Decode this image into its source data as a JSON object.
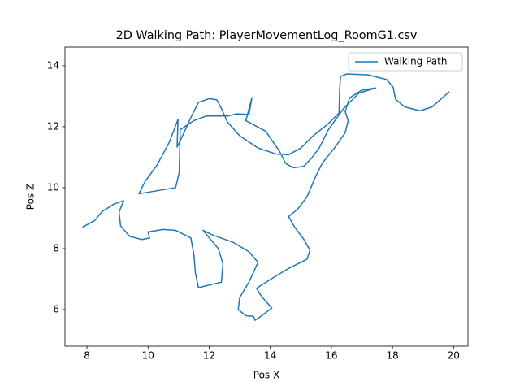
{
  "chart_data": {
    "type": "line",
    "title": "2D Walking Path: PlayerMovementLog_RoomG1.csv",
    "x_label": "Pos X",
    "y_label": "Pos Z",
    "xlim": [
      7.28,
      20.47
    ],
    "ylim": [
      4.8,
      14.61
    ],
    "xticks": [
      8,
      10,
      12,
      14,
      16,
      18,
      20
    ],
    "yticks": [
      6,
      8,
      10,
      12,
      14
    ],
    "legend": "upper right",
    "grid": false,
    "x": [
      7.85,
      8.25,
      8.5,
      8.9,
      9.2,
      9.05,
      9.1,
      9.4,
      9.8,
      10.05,
      10.0,
      10.5,
      10.9,
      11.2,
      11.4,
      11.5,
      11.55,
      11.65,
      12.4,
      12.45,
      12.3,
      11.8,
      12.1,
      12.3,
      12.8,
      13.3,
      13.6,
      13.3,
      13.0,
      12.95,
      13.2,
      13.45,
      13.5,
      13.65,
      14.05,
      13.7,
      13.55,
      14.1,
      14.6,
      15.2,
      15.3,
      15.1,
      14.8,
      14.6,
      14.9,
      15.2,
      15.5,
      15.7,
      16.1,
      16.45,
      16.55,
      16.45,
      16.6,
      17.0,
      17.45,
      16.9,
      16.4,
      15.9,
      15.6,
      15.35,
      15.1,
      14.75,
      14.5,
      14.3,
      13.85,
      13.2,
      13.4,
      13.3,
      12.9,
      12.6,
      11.9,
      11.5,
      11.05,
      11.02,
      10.9,
      10.3,
      9.7,
      9.9,
      10.3,
      10.7,
      10.98,
      10.95,
      11.15,
      11.4,
      11.65,
      12.0,
      12.25,
      12.4,
      12.6,
      13.0,
      13.6,
      14.2,
      14.6,
      15.0,
      15.4,
      15.9,
      16.25,
      16.27,
      16.3,
      16.5,
      17.2,
      17.8,
      18.02,
      18.1,
      18.4,
      18.9,
      19.3,
      19.86
    ],
    "series": [
      {
        "name": "Walking Path",
        "color": "#1f77b4",
        "values": [
          8.7,
          8.92,
          9.22,
          9.47,
          9.57,
          9.2,
          8.75,
          8.4,
          8.3,
          8.35,
          8.55,
          8.63,
          8.6,
          8.45,
          8.35,
          7.8,
          7.2,
          6.72,
          6.9,
          7.5,
          8.0,
          8.6,
          8.45,
          8.38,
          8.2,
          7.9,
          7.55,
          6.9,
          6.4,
          6.0,
          5.8,
          5.78,
          5.65,
          5.75,
          6.05,
          6.45,
          6.7,
          7.05,
          7.35,
          7.65,
          7.95,
          8.3,
          8.7,
          9.05,
          9.3,
          9.7,
          10.4,
          10.8,
          11.3,
          11.8,
          12.2,
          12.5,
          12.95,
          13.2,
          13.27,
          13.1,
          12.6,
          11.9,
          11.3,
          10.97,
          10.7,
          10.65,
          10.8,
          11.2,
          11.85,
          12.2,
          12.95,
          12.4,
          12.42,
          12.35,
          12.35,
          12.2,
          11.9,
          10.5,
          10.0,
          9.9,
          9.8,
          10.2,
          10.75,
          11.5,
          12.24,
          11.33,
          11.75,
          12.3,
          12.8,
          12.92,
          12.88,
          12.6,
          12.15,
          11.7,
          11.3,
          11.1,
          11.08,
          11.3,
          11.7,
          12.1,
          12.45,
          13.2,
          13.65,
          13.73,
          13.7,
          13.55,
          13.3,
          12.9,
          12.65,
          12.52,
          12.65,
          13.15
        ]
      }
    ]
  }
}
